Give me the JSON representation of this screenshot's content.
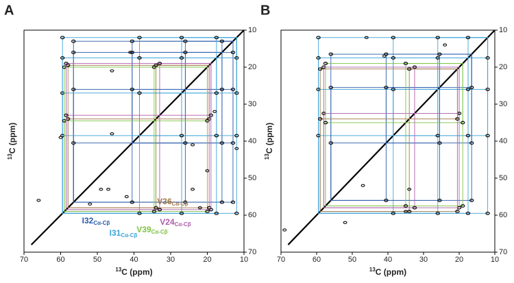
{
  "chart_data": [
    {
      "type": "scatter",
      "panel": "A",
      "xlabel_sup": "13",
      "xlabel": "C (ppm)",
      "ylabel_sup": "13",
      "ylabel": "C (ppm)",
      "xlim": [
        70,
        10
      ],
      "ylim": [
        70,
        10
      ],
      "xticks": [
        70,
        60,
        50,
        40,
        30,
        20,
        10
      ],
      "yticks": [
        70,
        60,
        50,
        40,
        30,
        20,
        10
      ],
      "series": [
        {
          "name": "I32",
          "sub": "Cα-Cβ",
          "color": "#2a5caa",
          "shifts": [
            56.5,
            40.5,
            26,
            16,
            13
          ]
        },
        {
          "name": "I31",
          "sub": "Cα-Cβ",
          "color": "#3ba3d8",
          "shifts": [
            59.5,
            38.5,
            27,
            17.5,
            12
          ]
        },
        {
          "name": "V39",
          "sub": "Cα-Cβ",
          "color": "#7dc242",
          "shifts": [
            59,
            34.5,
            20
          ]
        },
        {
          "name": "V36",
          "sub": "Cα-Cβ",
          "color": "#a0784a",
          "shifts": [
            58,
            34,
            19.5
          ]
        },
        {
          "name": "V24",
          "sub": "Cα-Cβ",
          "color": "#b05cab",
          "shifts": [
            58.5,
            33,
            19
          ]
        }
      ],
      "peaks": {
        "x": [
          46,
          41,
          46,
          24,
          20,
          12,
          18,
          47,
          24,
          52,
          66,
          42,
          22,
          60,
          49
        ],
        "y": [
          21,
          16,
          38,
          41,
          48,
          42,
          32,
          53,
          53,
          57,
          56,
          55,
          58,
          39,
          53
        ]
      }
    },
    {
      "type": "scatter",
      "panel": "B",
      "xlabel_sup": "13",
      "xlabel": "C (ppm)",
      "ylabel_sup": "13",
      "ylabel": "C (ppm)",
      "xlim": [
        70,
        10
      ],
      "ylim": [
        70,
        10
      ],
      "xticks": [
        70,
        60,
        50,
        40,
        30,
        20,
        10
      ],
      "yticks": [
        70,
        60,
        50,
        40,
        30,
        20,
        10
      ],
      "series": [
        {
          "color": "#3ba3d8",
          "shifts": [
            59.5,
            38.5,
            26,
            17.5,
            12
          ]
        },
        {
          "color": "#2a5caa",
          "shifts": [
            56,
            40.5,
            25.5,
            16.5
          ]
        },
        {
          "color": "#b05cab",
          "shifts": [
            58,
            32.5,
            20
          ]
        },
        {
          "color": "#7dc242",
          "shifts": [
            57.5,
            35,
            19
          ]
        },
        {
          "color": "#a0784a",
          "shifts": [
            59,
            34,
            20.5
          ]
        }
      ],
      "peaks": {
        "x": [
          46,
          41,
          24,
          34,
          35,
          69,
          52,
          47
        ],
        "y": [
          12,
          17,
          14,
          53,
          59,
          64,
          62,
          52
        ]
      }
    }
  ]
}
